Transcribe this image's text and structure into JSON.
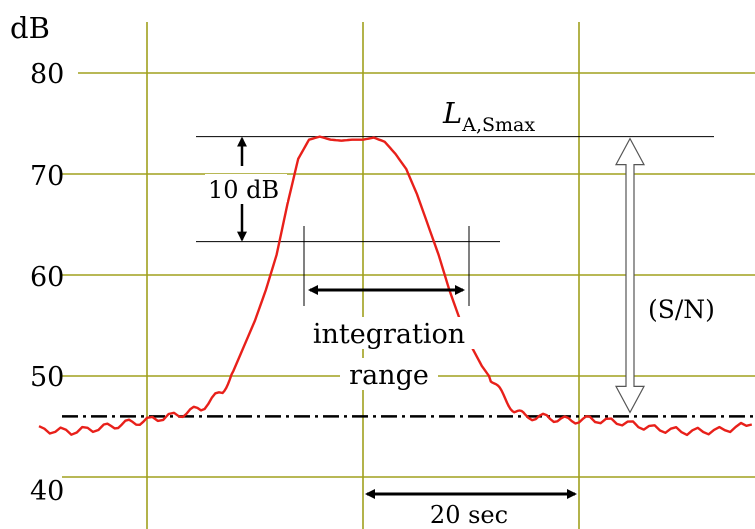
{
  "chart_data": {
    "type": "line",
    "ylabel": "dB",
    "ylim": [
      40,
      80
    ],
    "y_ticks": [
      "80",
      "70",
      "60",
      "50",
      "40"
    ],
    "grid": true,
    "x_unit_label": "20 sec",
    "vertical_grid_x_sec": [
      -20,
      0,
      20
    ],
    "series": [
      {
        "color": "#e8201a",
        "x": [
          -30,
          -27,
          -24,
          -22,
          -20,
          -17,
          -15,
          -13,
          -12,
          -10,
          -9,
          -8,
          -7,
          -6,
          -5,
          -4,
          -3,
          -2,
          -1,
          0,
          1,
          2,
          3,
          4,
          5,
          6,
          7,
          8,
          9,
          10,
          11,
          12,
          13,
          14,
          15,
          17,
          19,
          21,
          24,
          27,
          30,
          33,
          36
        ],
        "values": [
          44.7,
          44.5,
          44.9,
          45.3,
          45.6,
          46.2,
          46.8,
          48.5,
          50.5,
          55.5,
          58.5,
          62,
          67,
          71.5,
          73.4,
          73.7,
          73.4,
          73.3,
          73.4,
          73.4,
          73.6,
          73.2,
          72,
          70.5,
          68,
          65,
          62,
          58.5,
          55.5,
          53,
          51,
          49.5,
          48,
          46.6,
          46,
          45.9,
          45.6,
          45.7,
          45.4,
          44.8,
          44.5,
          44.6,
          45.2
        ]
      }
    ],
    "background_level_db": 46,
    "lmax_db": 73.7,
    "lower_limit_db": 63.3,
    "annotations": {
      "lmax_label_main": "L",
      "lmax_label_sub": "A,Smax",
      "delta_label": "10 dB",
      "sn_label": "(S/N)",
      "integration_label_line1": "integration",
      "integration_label_line2": "range"
    },
    "colors": {
      "grid": "#a0a01e",
      "signal": "#e8201a",
      "background_line": "#000000",
      "reference_lines": "#000000"
    }
  }
}
